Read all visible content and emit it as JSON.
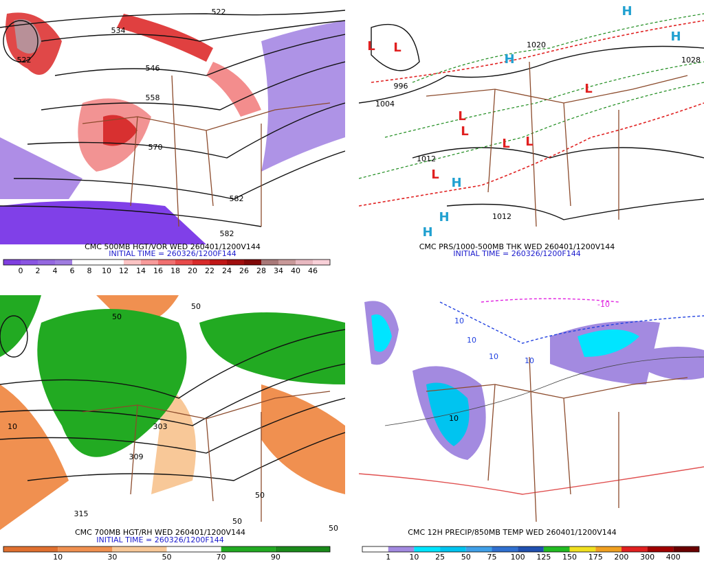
{
  "panels": [
    {
      "caption": "CMC 500MB HGT/VOR WED 260401/1200V144",
      "init_time": "INITIAL TIME = 260326/1200F144",
      "labels": [
        "522",
        "534",
        "522",
        "546",
        "558",
        "570",
        "582",
        "582"
      ],
      "colorbar": {
        "labels": [
          0,
          2,
          4,
          6,
          8,
          10,
          12,
          14,
          16,
          18,
          20,
          22,
          24,
          26,
          28,
          34,
          40,
          46
        ],
        "colors": [
          "#7f3fe0",
          "#8a55e2",
          "#9468e0",
          "#9f7ce0",
          "#ffffff",
          "#ffffff",
          "#ffffff",
          "#fbc4c4",
          "#f79a9a",
          "#f07070",
          "#e84a4a",
          "#d82a2a",
          "#c01818",
          "#a00e0e",
          "#800808",
          "#a87878",
          "#c89898",
          "#e8b8c0",
          "#f8d0d8"
        ]
      }
    },
    {
      "caption": "CMC PRS/1000-500MB THK WED 260401/1200V144",
      "init_time": "INITIAL TIME = 260326/1200F144",
      "labels": [
        "L",
        "L",
        "H",
        "L",
        "L",
        "L",
        "L",
        "L",
        "L",
        "H",
        "H",
        "H",
        "H",
        "H",
        "1004",
        "1012",
        "1012",
        "1028",
        "1020",
        "996"
      ]
    },
    {
      "caption": "CMC 700MB HGT/RH WED 260401/1200V144",
      "init_time": "INITIAL TIME = 260326/1200F144",
      "labels": [
        "50",
        "50",
        "10",
        "303",
        "309",
        "315",
        "50",
        "50",
        "50"
      ],
      "colorbar": {
        "labels": [
          10,
          30,
          50,
          70,
          90
        ],
        "colors": [
          "#e07030",
          "#f09050",
          "#f8c898",
          "#ffffff",
          "#22aa22",
          "#1a8a1a"
        ]
      }
    },
    {
      "caption": "CMC 12H PRECIP/850MB TEMP WED 260401/1200V144",
      "labels": [
        "10",
        "10",
        "10",
        "10",
        "-10",
        "10"
      ],
      "colorbar": {
        "labels": [
          1,
          10,
          25,
          50,
          75,
          100,
          125,
          150,
          175,
          200,
          300,
          400
        ],
        "colors": [
          "#ffffff",
          "#a38ae0",
          "#00e5ff",
          "#00c4f0",
          "#40a0e8",
          "#3070d0",
          "#2050b0",
          "#22bb22",
          "#f0e020",
          "#f0a020",
          "#e02020",
          "#a00000",
          "#6a0000"
        ]
      }
    }
  ]
}
